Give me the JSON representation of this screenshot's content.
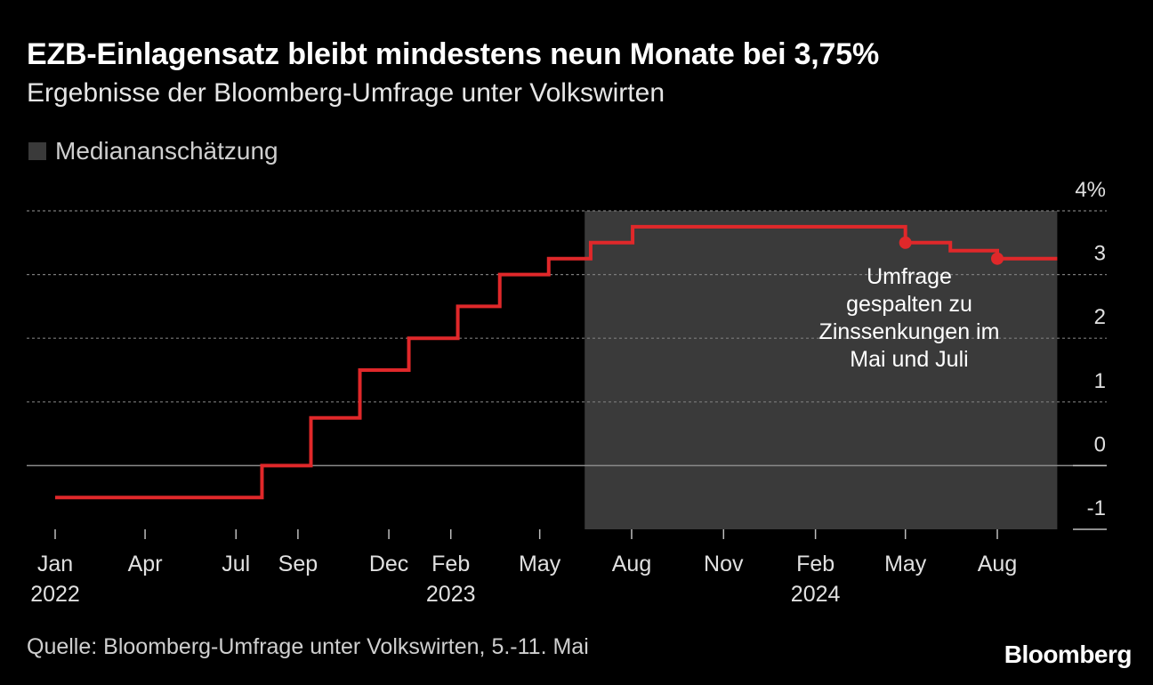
{
  "header": {
    "title": "EZB-Einlagensatz bleibt mindestens neun Monate bei 3,75%",
    "subtitle": "Ergebnisse der Bloomberg-Umfrage unter Volkswirten"
  },
  "legend": {
    "label": "Mediananschätzung",
    "swatch_color": "#3a3a3a"
  },
  "footer": {
    "source": "Quelle: Bloomberg-Umfrage unter Volkswirten, 5.-11. Mai",
    "brand": "Bloomberg"
  },
  "chart_data": {
    "type": "line",
    "step": true,
    "title": "EZB-Einlagensatz bleibt mindestens neun Monate bei 3,75%",
    "subtitle": "Ergebnisse der Bloomberg-Umfrage unter Volkswirten",
    "ylim": [
      -1,
      4
    ],
    "yticks": [
      {
        "value": 4,
        "label": "4%"
      },
      {
        "value": 3,
        "label": "3"
      },
      {
        "value": 2,
        "label": "2"
      },
      {
        "value": 1,
        "label": "1"
      },
      {
        "value": 0,
        "label": "0"
      },
      {
        "value": -1,
        "label": "-1"
      }
    ],
    "xlim": [
      "2022-01-01",
      "2024-09-30"
    ],
    "xticks": [
      {
        "date": "2022-01-01",
        "label": "Jan",
        "year": "2022"
      },
      {
        "date": "2022-04-01",
        "label": "Apr",
        "year": ""
      },
      {
        "date": "2022-07-01",
        "label": "Jul",
        "year": ""
      },
      {
        "date": "2022-09-01",
        "label": "Sep",
        "year": ""
      },
      {
        "date": "2022-12-01",
        "label": "Dec",
        "year": ""
      },
      {
        "date": "2023-02-01",
        "label": "Feb",
        "year": "2023"
      },
      {
        "date": "2023-05-01",
        "label": "May",
        "year": ""
      },
      {
        "date": "2023-08-01",
        "label": "Aug",
        "year": ""
      },
      {
        "date": "2023-11-01",
        "label": "Nov",
        "year": ""
      },
      {
        "date": "2024-02-01",
        "label": "Feb",
        "year": "2024"
      },
      {
        "date": "2024-05-01",
        "label": "May",
        "year": ""
      },
      {
        "date": "2024-08-01",
        "label": "Aug",
        "year": ""
      }
    ],
    "grid": true,
    "shaded_region": {
      "start": "2023-06-15",
      "end": "2024-09-30",
      "label": "Mediananschätzung",
      "color": "#3a3a3a"
    },
    "series": [
      {
        "color": "#e0282a",
        "points": [
          {
            "x": "2022-01-01",
            "y": -0.5
          },
          {
            "x": "2022-07-27",
            "y": 0.0
          },
          {
            "x": "2022-09-14",
            "y": 0.75
          },
          {
            "x": "2022-11-02",
            "y": 1.5
          },
          {
            "x": "2022-12-21",
            "y": 2.0
          },
          {
            "x": "2023-02-08",
            "y": 2.5
          },
          {
            "x": "2023-03-22",
            "y": 3.0
          },
          {
            "x": "2023-05-10",
            "y": 3.25
          },
          {
            "x": "2023-06-21",
            "y": 3.5
          },
          {
            "x": "2023-08-02",
            "y": 3.75
          },
          {
            "x": "2024-05-01",
            "y": 3.5
          },
          {
            "x": "2024-06-15",
            "y": 3.375
          },
          {
            "x": "2024-08-01",
            "y": 3.25
          },
          {
            "x": "2024-09-30",
            "y": 3.25
          }
        ]
      }
    ],
    "markers": [
      {
        "x": "2024-05-01",
        "y": 3.5
      },
      {
        "x": "2024-08-01",
        "y": 3.25
      }
    ],
    "annotations": [
      {
        "lines": [
          "Umfrage",
          "gespalten zu",
          "Zinssenkungen im",
          "Mai und Juli"
        ]
      }
    ]
  }
}
